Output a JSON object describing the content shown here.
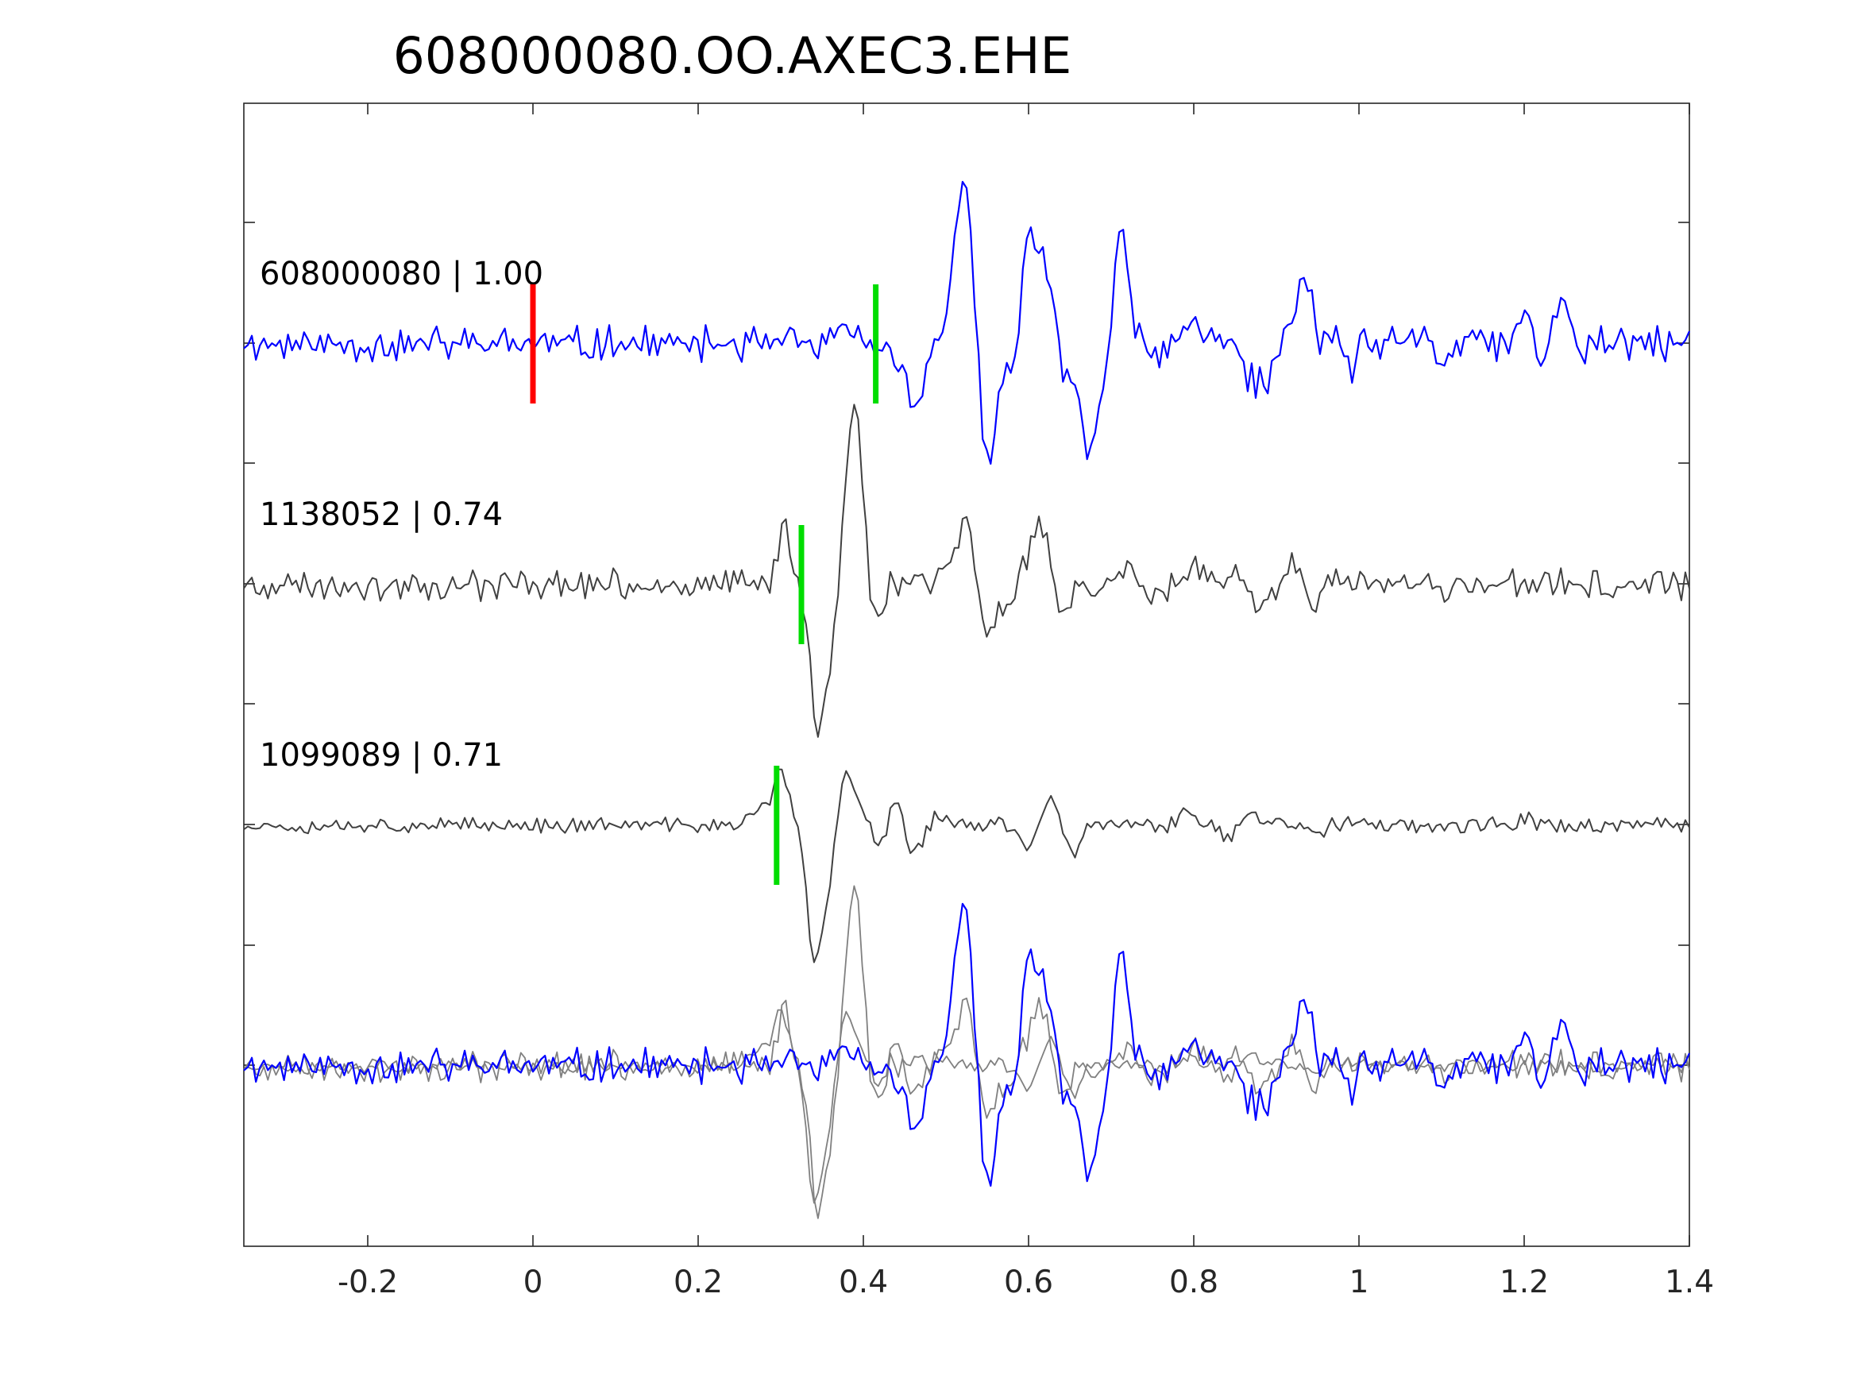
{
  "chart_data": {
    "type": "line",
    "title": "608000080.OO.AXEC3.EHE",
    "xlabel": "",
    "ylabel": "",
    "xlim": [
      -0.35,
      1.4
    ],
    "x_ticks": [
      "-0.2",
      "0",
      "0.2",
      "0.4",
      "0.6",
      "0.8",
      "1",
      "1.2",
      "1.4"
    ],
    "x_tick_values": [
      -0.2,
      0,
      0.2,
      0.4,
      0.6,
      0.8,
      1.0,
      1.2,
      1.4
    ],
    "grid": false,
    "y_ticks_unlabeled": 8,
    "colors": {
      "target": "#0000ff",
      "template": "#404040",
      "overlay_template": "#808080",
      "origin_marker": "#ff0000",
      "pick_marker": "#00dd00",
      "axes": "#262626"
    },
    "series": [
      {
        "label": "608000080 | 1.00",
        "trace_id": "608000080",
        "correlation": 1.0,
        "color": "#0000ff",
        "origin_marker_x": 0.0,
        "pick_marker_x": 0.415,
        "features": [
          [
            0.38,
            0.16
          ],
          [
            0.415,
            -0.02
          ],
          [
            0.44,
            -0.12
          ],
          [
            0.465,
            -0.6
          ],
          [
            0.495,
            0.1
          ],
          [
            0.515,
            0.75
          ],
          [
            0.525,
            0.8
          ],
          [
            0.552,
            -1.05
          ],
          [
            0.58,
            -0.3
          ],
          [
            0.6,
            0.95
          ],
          [
            0.62,
            0.6
          ],
          [
            0.645,
            -0.3
          ],
          [
            0.672,
            -0.92
          ],
          [
            0.69,
            -0.3
          ],
          [
            0.712,
            1.0
          ],
          [
            0.735,
            0.1
          ],
          [
            0.75,
            -0.2
          ],
          [
            0.8,
            0.2
          ],
          [
            0.84,
            0.05
          ],
          [
            0.87,
            -0.3
          ],
          [
            0.89,
            -0.3
          ],
          [
            0.92,
            0.15
          ],
          [
            0.935,
            0.5
          ],
          [
            0.97,
            0.1
          ],
          [
            0.99,
            -0.2
          ],
          [
            1.02,
            0.0
          ],
          [
            1.08,
            0.15
          ],
          [
            1.1,
            -0.2
          ],
          [
            1.15,
            0.05
          ],
          [
            1.2,
            0.2
          ],
          [
            1.225,
            -0.1
          ],
          [
            1.245,
            0.38
          ],
          [
            1.265,
            -0.05
          ],
          [
            1.3,
            0.0
          ],
          [
            1.4,
            0.05
          ]
        ]
      },
      {
        "label": "1138052 | 0.74",
        "trace_id": "1138052",
        "correlation": 0.74,
        "color": "#404040",
        "pick_marker_x": 0.325,
        "features": [
          [
            0.28,
            0.0
          ],
          [
            0.305,
            0.45
          ],
          [
            0.33,
            -0.1
          ],
          [
            0.345,
            -1.05
          ],
          [
            0.36,
            -0.4
          ],
          [
            0.385,
            1.05
          ],
          [
            0.395,
            0.7
          ],
          [
            0.415,
            -0.35
          ],
          [
            0.44,
            0.05
          ],
          [
            0.47,
            0.1
          ],
          [
            0.485,
            -0.1
          ],
          [
            0.5,
            0.3
          ],
          [
            0.525,
            0.55
          ],
          [
            0.55,
            -0.45
          ],
          [
            0.575,
            -0.2
          ],
          [
            0.595,
            0.15
          ],
          [
            0.615,
            0.55
          ],
          [
            0.64,
            -0.2
          ],
          [
            0.68,
            -0.05
          ],
          [
            0.72,
            0.2
          ],
          [
            0.75,
            -0.1
          ],
          [
            0.8,
            0.1
          ],
          [
            0.85,
            0.05
          ],
          [
            0.88,
            -0.2
          ],
          [
            0.92,
            0.15
          ],
          [
            0.95,
            -0.1
          ],
          [
            1.0,
            0.05
          ],
          [
            1.1,
            -0.1
          ],
          [
            1.2,
            0.05
          ],
          [
            1.3,
            -0.05
          ],
          [
            1.4,
            0.0
          ]
        ]
      },
      {
        "label": "1099089 | 0.71",
        "trace_id": "1099089",
        "correlation": 0.71,
        "color": "#404040",
        "pick_marker_x": 0.295,
        "features": [
          [
            0.26,
            0.0
          ],
          [
            0.275,
            0.15
          ],
          [
            0.3,
            0.5
          ],
          [
            0.315,
            0.0
          ],
          [
            0.34,
            -1.0
          ],
          [
            0.355,
            -0.5
          ],
          [
            0.38,
            0.45
          ],
          [
            0.4,
            0.1
          ],
          [
            0.42,
            -0.2
          ],
          [
            0.44,
            0.3
          ],
          [
            0.455,
            -0.2
          ],
          [
            0.47,
            -0.1
          ],
          [
            0.49,
            0.1
          ],
          [
            0.53,
            0.0
          ],
          [
            0.58,
            0.0
          ],
          [
            0.6,
            -0.2
          ],
          [
            0.625,
            0.25
          ],
          [
            0.655,
            -0.25
          ],
          [
            0.69,
            0.0
          ],
          [
            0.73,
            0.0
          ],
          [
            0.79,
            0.15
          ],
          [
            0.84,
            -0.1
          ],
          [
            0.87,
            0.1
          ],
          [
            0.9,
            0.05
          ],
          [
            0.95,
            -0.05
          ],
          [
            1.0,
            0.05
          ],
          [
            1.1,
            0.0
          ],
          [
            1.2,
            0.05
          ],
          [
            1.3,
            0.0
          ],
          [
            1.4,
            0.0
          ]
        ]
      }
    ],
    "overlay": {
      "description_series": [
        "608000080",
        "1138052",
        "1099089"
      ]
    }
  }
}
